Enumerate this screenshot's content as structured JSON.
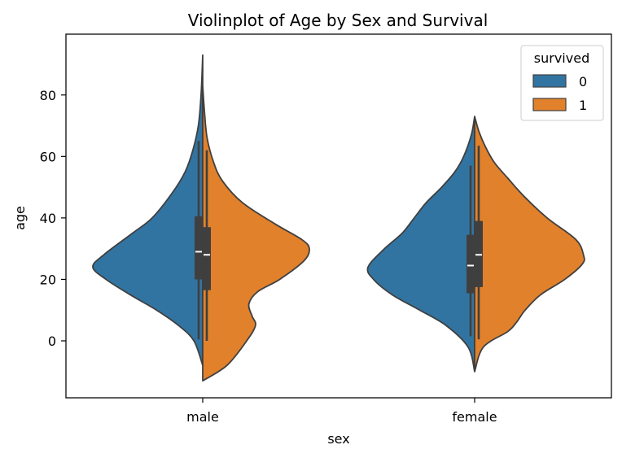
{
  "chart_data": {
    "type": "violin",
    "title": "Violinplot of Age by Sex and Survival",
    "xlabel": "sex",
    "ylabel": "age",
    "categories": [
      "male",
      "female"
    ],
    "ylim": [
      -18,
      97
    ],
    "yticks": [
      0,
      20,
      40,
      60,
      80
    ],
    "legend": {
      "title": "survived",
      "position": "top-right",
      "entries": [
        {
          "label": "0",
          "color": "#3274a1"
        },
        {
          "label": "1",
          "color": "#e1812c"
        }
      ]
    },
    "series": [
      {
        "name": "0",
        "color": "#3274a1",
        "side": "left",
        "groups": [
          {
            "category": "male",
            "profile": [
              [
                -8,
                0.0
              ],
              [
                0,
                0.08
              ],
              [
                5,
                0.22
              ],
              [
                10,
                0.42
              ],
              [
                15,
                0.66
              ],
              [
                20,
                0.88
              ],
              [
                24,
                1.0
              ],
              [
                28,
                0.9
              ],
              [
                35,
                0.64
              ],
              [
                40,
                0.46
              ],
              [
                48,
                0.28
              ],
              [
                55,
                0.16
              ],
              [
                62,
                0.09
              ],
              [
                70,
                0.04
              ],
              [
                80,
                0.015
              ],
              [
                93,
                0.0
              ]
            ],
            "box": {
              "whisker_low": 0.5,
              "q1": 20,
              "median": 29,
              "q3": 40.5,
              "whisker_high": 65
            }
          },
          {
            "category": "female",
            "profile": [
              [
                -10,
                0.0
              ],
              [
                -2,
                0.06
              ],
              [
                5,
                0.26
              ],
              [
                10,
                0.5
              ],
              [
                15,
                0.75
              ],
              [
                20,
                0.92
              ],
              [
                24,
                0.97
              ],
              [
                30,
                0.82
              ],
              [
                35,
                0.66
              ],
              [
                40,
                0.55
              ],
              [
                45,
                0.44
              ],
              [
                50,
                0.3
              ],
              [
                55,
                0.18
              ],
              [
                60,
                0.1
              ],
              [
                67,
                0.03
              ],
              [
                73,
                0.0
              ]
            ],
            "box": {
              "whisker_low": 1.5,
              "q1": 15.5,
              "median": 24.5,
              "q3": 34.5,
              "whisker_high": 57
            }
          }
        ]
      },
      {
        "name": "1",
        "color": "#e1812c",
        "side": "right",
        "groups": [
          {
            "category": "male",
            "profile": [
              [
                -13,
                0.0
              ],
              [
                -8,
                0.22
              ],
              [
                0,
                0.4
              ],
              [
                5,
                0.48
              ],
              [
                8,
                0.45
              ],
              [
                12,
                0.42
              ],
              [
                16,
                0.5
              ],
              [
                20,
                0.7
              ],
              [
                26,
                0.92
              ],
              [
                30,
                0.97
              ],
              [
                33,
                0.9
              ],
              [
                38,
                0.66
              ],
              [
                45,
                0.36
              ],
              [
                52,
                0.18
              ],
              [
                58,
                0.1
              ],
              [
                66,
                0.04
              ],
              [
                75,
                0.015
              ],
              [
                83,
                0.0
              ]
            ],
            "box": {
              "whisker_low": 0,
              "q1": 16.5,
              "median": 28,
              "q3": 37,
              "whisker_high": 62
            }
          },
          {
            "category": "female",
            "profile": [
              [
                -10,
                0.0
              ],
              [
                -2,
                0.08
              ],
              [
                3,
                0.3
              ],
              [
                6,
                0.38
              ],
              [
                10,
                0.46
              ],
              [
                15,
                0.6
              ],
              [
                20,
                0.82
              ],
              [
                25,
                0.98
              ],
              [
                28,
                0.99
              ],
              [
                33,
                0.92
              ],
              [
                40,
                0.66
              ],
              [
                47,
                0.45
              ],
              [
                53,
                0.3
              ],
              [
                58,
                0.18
              ],
              [
                63,
                0.1
              ],
              [
                68,
                0.04
              ],
              [
                73,
                0.0
              ]
            ],
            "box": {
              "whisker_low": 0.5,
              "q1": 17.5,
              "median": 28,
              "q3": 39,
              "whisker_high": 63.5
            }
          }
        ]
      }
    ]
  }
}
